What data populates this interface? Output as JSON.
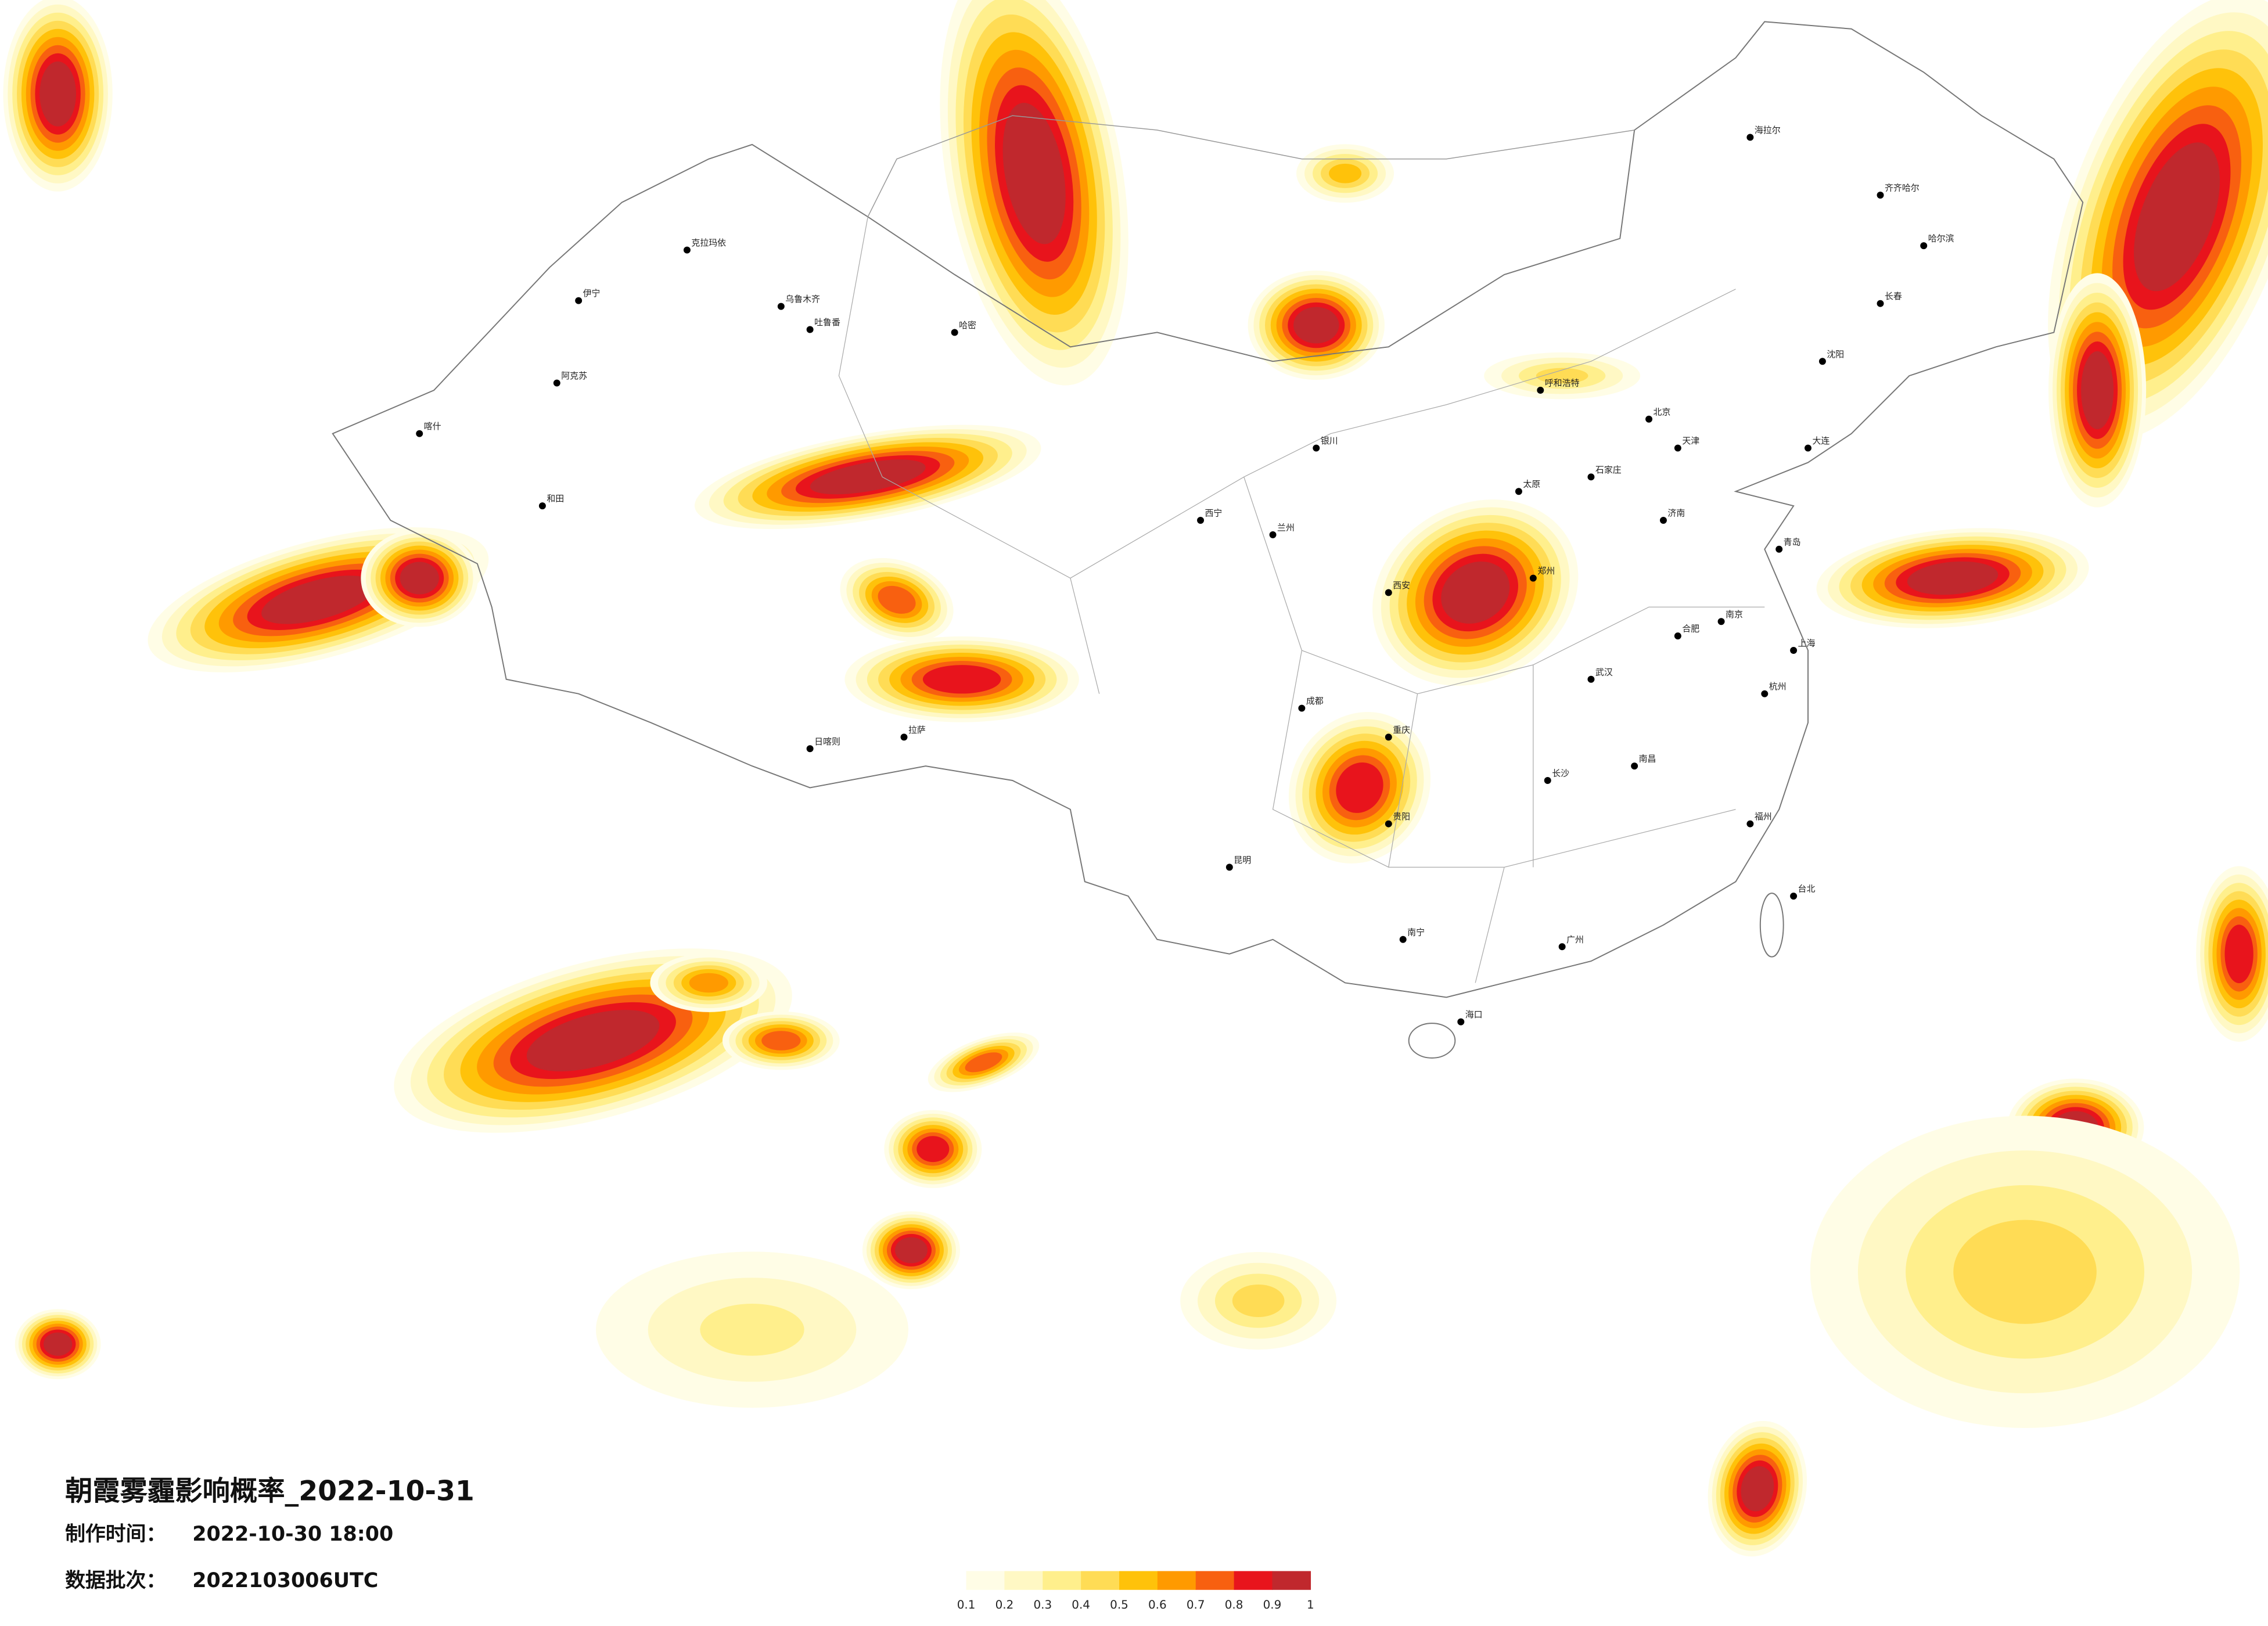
{
  "header": {
    "title": "朝霞雾霾影响概率_2022-10-31",
    "made_label": "制作时间：",
    "made_time": "2022-10-30 18:00",
    "batch_label": "数据批次：",
    "batch": "2022103006UTC"
  },
  "legend": {
    "ticks": [
      0.1,
      0.2,
      0.3,
      0.4,
      0.5,
      0.6,
      0.7,
      0.8,
      0.9,
      1
    ],
    "colors": [
      "#fffde6",
      "#fff8c4",
      "#ffef8c",
      "#ffdc55",
      "#ffc20a",
      "#ff9a00",
      "#f86010",
      "#e8141c",
      "#c0282d"
    ]
  },
  "cities": [
    "克拉玛依",
    "乌鲁木齐",
    "吐鲁番",
    "伊宁",
    "阿克苏",
    "喀什",
    "和田",
    "哈密",
    "拉萨",
    "日喀则",
    "西宁",
    "兰州",
    "银川",
    "呼和浩特",
    "北京",
    "天津",
    "石家庄",
    "太原",
    "济南",
    "郑州",
    "西安",
    "成都",
    "重庆",
    "武汉",
    "长沙",
    "南昌",
    "合肥",
    "南京",
    "上海",
    "杭州",
    "福州",
    "广州",
    "南宁",
    "贵阳",
    "昆明",
    "海口",
    "沈阳",
    "长春",
    "哈尔滨",
    "齐齐哈尔",
    "海拉尔",
    "台北",
    "大连",
    "青岛"
  ]
}
